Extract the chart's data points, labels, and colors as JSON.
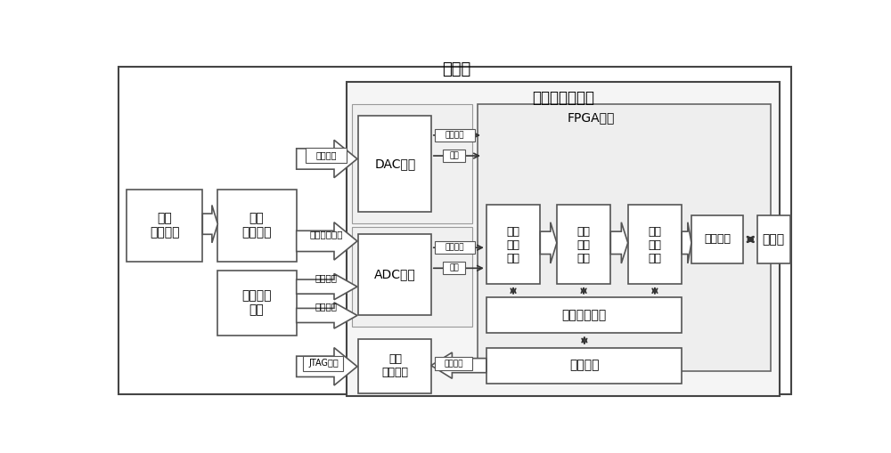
{
  "bg_color": "#ffffff",
  "title_cepban": "测试板",
  "title_shumo": "数模混合微系统",
  "title_fpga": "FPGA单元",
  "blocks": {
    "xinhaofasheng": "信号\n发生模块",
    "xinhaotiaoli": "信号\n调理模块",
    "shizong": "时钟产生\n模块",
    "dac": "DAC单元",
    "adc": "ADC单元",
    "peizhicunchu": "配置\n存储单元",
    "shujucaiji": "数据\n采集\n模块",
    "shujucunchu": "数据\n存储\n模块",
    "shujuchuli": "数据\n处理\n模块",
    "guochengkongzhi": "过程控制模块",
    "tongxinmokuai": "通信模块",
    "tongxinjiekou": "通信接口",
    "shangjiji": "上位机"
  },
  "labels": {
    "dianyuanshurun": "电源输入",
    "manliang": "满量程正弦波",
    "shizhong1": "时钟信号",
    "shizhong2": "时钟信号",
    "jtag": "JTAG管脚",
    "kongzhixinhao1": "控制信号",
    "shuju1": "数据",
    "kongzhixinhao2": "控制信号",
    "shuju2": "数据",
    "peizhiguanjiao": "配置管脚"
  }
}
